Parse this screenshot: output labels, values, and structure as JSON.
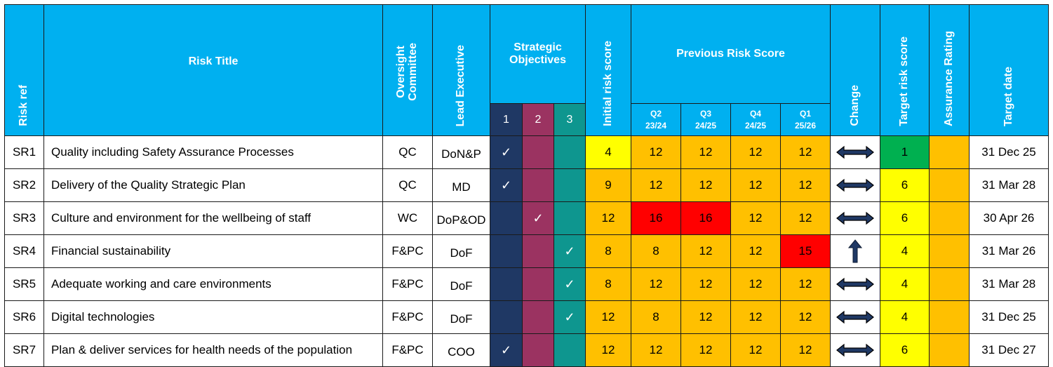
{
  "colors": {
    "header": "#00b0f0",
    "objective_1": "#1f3864",
    "objective_2": "#9b3361",
    "objective_3": "#0e968f",
    "yellow": "#ffff00",
    "amber": "#ffc000",
    "red": "#ff0000",
    "green": "#00b050"
  },
  "headers": {
    "risk_ref": "Risk ref",
    "risk_title": "Risk Title",
    "oversight_line1": "Oversight",
    "oversight_line2": "Committee",
    "lead_executive": "Lead Executive",
    "strategic_objectives_line1": "Strategic",
    "strategic_objectives_line2": "Objectives",
    "initial_risk_score": "Initial risk score",
    "previous_risk_score": "Previous Risk Score",
    "change": "Change",
    "target_risk_score": "Target risk score",
    "assurance_rating": "Assurance Rating",
    "target_date": "Target date",
    "objectives": [
      "1",
      "2",
      "3"
    ],
    "quarters": [
      {
        "q": "Q2",
        "y": "23/24"
      },
      {
        "q": "Q3",
        "y": "24/25"
      },
      {
        "q": "Q4",
        "y": "24/25"
      },
      {
        "q": "Q1",
        "y": "25/26"
      }
    ]
  },
  "tick_symbol": "✓",
  "rows": [
    {
      "ref": "SR1",
      "title": "Quality including Safety Assurance Processes",
      "committee": "QC",
      "lead": "DoN&P",
      "objectives": [
        true,
        false,
        false
      ],
      "initial": "4",
      "initial_color": "yellow",
      "previous": [
        "12",
        "12",
        "12",
        "12"
      ],
      "previous_colors": [
        "amber",
        "amber",
        "amber",
        "amber"
      ],
      "change_icon": "double-arrow-icon",
      "target": "1",
      "target_color": "green",
      "assurance_color": "amber",
      "date": "31 Dec 25"
    },
    {
      "ref": "SR2",
      "title": "Delivery of the Quality Strategic Plan",
      "committee": "QC",
      "lead": "MD",
      "objectives": [
        true,
        false,
        false
      ],
      "initial": "9",
      "initial_color": "amber",
      "previous": [
        "12",
        "12",
        "12",
        "12"
      ],
      "previous_colors": [
        "amber",
        "amber",
        "amber",
        "amber"
      ],
      "change_icon": "double-arrow-icon",
      "target": "6",
      "target_color": "yellow",
      "assurance_color": "amber",
      "date": "31 Mar 28"
    },
    {
      "ref": "SR3",
      "title": "Culture and environment for the wellbeing of staff",
      "committee": "WC",
      "lead": "DoP&OD",
      "objectives": [
        false,
        true,
        false
      ],
      "initial": "12",
      "initial_color": "amber",
      "previous": [
        "16",
        "16",
        "12",
        "12"
      ],
      "previous_colors": [
        "red",
        "red",
        "amber",
        "amber"
      ],
      "change_icon": "double-arrow-icon",
      "target": "6",
      "target_color": "yellow",
      "assurance_color": "amber",
      "date": "30 Apr 26"
    },
    {
      "ref": "SR4",
      "title": "Financial sustainability",
      "committee": "F&PC",
      "lead": "DoF",
      "objectives": [
        false,
        false,
        true
      ],
      "initial": "8",
      "initial_color": "amber",
      "previous": [
        "8",
        "12",
        "12",
        "15"
      ],
      "previous_colors": [
        "amber",
        "amber",
        "amber",
        "red"
      ],
      "change_icon": "up-arrow-icon",
      "target": "4",
      "target_color": "yellow",
      "assurance_color": "amber",
      "date": "31 Mar 26"
    },
    {
      "ref": "SR5",
      "title": "Adequate working and care environments",
      "committee": "F&PC",
      "lead": "DoF",
      "objectives": [
        false,
        false,
        true
      ],
      "initial": "8",
      "initial_color": "amber",
      "previous": [
        "12",
        "12",
        "12",
        "12"
      ],
      "previous_colors": [
        "amber",
        "amber",
        "amber",
        "amber"
      ],
      "change_icon": "double-arrow-icon",
      "target": "4",
      "target_color": "yellow",
      "assurance_color": "amber",
      "date": "31 Mar 28"
    },
    {
      "ref": "SR6",
      "title": "Digital technologies",
      "committee": "F&PC",
      "lead": "DoF",
      "objectives": [
        false,
        false,
        true
      ],
      "initial": "12",
      "initial_color": "amber",
      "previous": [
        "8",
        "12",
        "12",
        "12"
      ],
      "previous_colors": [
        "amber",
        "amber",
        "amber",
        "amber"
      ],
      "change_icon": "double-arrow-icon",
      "target": "4",
      "target_color": "yellow",
      "assurance_color": "amber",
      "date": "31 Dec 25"
    },
    {
      "ref": "SR7",
      "title": "Plan & deliver services for health needs of the population",
      "committee": "F&PC",
      "lead": "COO",
      "objectives": [
        true,
        false,
        false
      ],
      "initial": "12",
      "initial_color": "amber",
      "previous": [
        "12",
        "12",
        "12",
        "12"
      ],
      "previous_colors": [
        "amber",
        "amber",
        "amber",
        "amber"
      ],
      "change_icon": "double-arrow-icon",
      "target": "6",
      "target_color": "yellow",
      "assurance_color": "amber",
      "date": "31 Dec 27"
    }
  ]
}
